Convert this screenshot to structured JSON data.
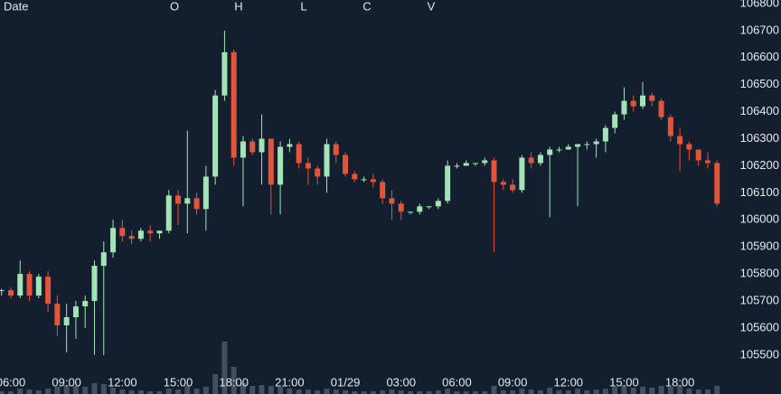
{
  "chart_data": {
    "type": "candlestick",
    "header": [
      "Date",
      "O",
      "H",
      "L",
      "C",
      "V"
    ],
    "up_color": "#a3e4b6",
    "down_color": "#e2553b",
    "volume_color": "#5a6472",
    "ylim": [
      105356,
      106813
    ],
    "yticks": [
      105500,
      105600,
      105700,
      105800,
      105900,
      106000,
      106100,
      106200,
      106300,
      106400,
      106500,
      106600,
      106700,
      106800
    ],
    "xticks": [
      {
        "value": 1,
        "label": "06:00"
      },
      {
        "value": 7,
        "label": "09:00"
      },
      {
        "value": 13,
        "label": "12:00"
      },
      {
        "value": 19,
        "label": "15:00"
      },
      {
        "value": 25,
        "label": "18:00"
      },
      {
        "value": 31,
        "label": "21:00"
      },
      {
        "value": 37,
        "label": "01/29"
      },
      {
        "value": 43,
        "label": "03:00"
      },
      {
        "value": 49,
        "label": "06:00"
      },
      {
        "value": 55,
        "label": "09:00"
      },
      {
        "value": 61,
        "label": "12:00"
      },
      {
        "value": 67,
        "label": "15:00"
      },
      {
        "value": 73,
        "label": "18:00"
      }
    ],
    "open": [
      105740,
      105740,
      105720,
      105800,
      105720,
      105790,
      105690,
      105610,
      105640,
      105680,
      105700,
      105830,
      105880,
      105970,
      105940,
      105930,
      105960,
      105950,
      105960,
      106090,
      106060,
      106080,
      106040,
      106160,
      106460,
      106620,
      106230,
      106290,
      106250,
      106300,
      106130,
      106270,
      106280,
      106210,
      106190,
      106160,
      106280,
      106240,
      106170,
      106150,
      106150,
      106140,
      106080,
      106060,
      106030,
      106030,
      106050,
      106050,
      106070,
      106200,
      106200,
      106210,
      106210,
      106220,
      106140,
      106130,
      106110,
      106230,
      106210,
      106240,
      106260,
      106260,
      106270,
      106280,
      106280,
      106290,
      106340,
      106390,
      106440,
      106420,
      106460,
      106440,
      106380,
      106310,
      106280,
      106260,
      106220,
      106210
    ],
    "high": [
      105745,
      105750,
      105850,
      105810,
      105800,
      105810,
      105720,
      105690,
      105700,
      105720,
      105850,
      105920,
      106000,
      106000,
      105960,
      105970,
      105980,
      105960,
      106110,
      106110,
      106330,
      106100,
      106200,
      106480,
      106700,
      106630,
      106310,
      106300,
      106390,
      106300,
      106290,
      106300,
      106290,
      106230,
      106200,
      106300,
      106290,
      106250,
      106180,
      106160,
      106170,
      106150,
      106110,
      106070,
      106030,
      106060,
      106050,
      106080,
      106220,
      106210,
      106220,
      106210,
      106230,
      106230,
      106150,
      106150,
      106240,
      106250,
      106250,
      106270,
      106270,
      106280,
      106280,
      106290,
      106300,
      106350,
      106400,
      106490,
      106460,
      106510,
      106470,
      106450,
      106390,
      106340,
      106290,
      106260,
      106250,
      106220
    ],
    "low": [
      105720,
      105710,
      105710,
      105700,
      105710,
      105660,
      105570,
      105510,
      105560,
      105600,
      105500,
      105500,
      105860,
      105920,
      105910,
      105920,
      105920,
      105930,
      105950,
      105980,
      105950,
      106020,
      105960,
      106130,
      106440,
      106200,
      106050,
      106240,
      106130,
      106020,
      106020,
      106250,
      106190,
      106130,
      106130,
      106100,
      106210,
      106160,
      106140,
      106140,
      106120,
      106060,
      106000,
      106000,
      106020,
      106020,
      106040,
      106040,
      106060,
      106190,
      106200,
      106200,
      106200,
      105880,
      106110,
      106100,
      106100,
      106190,
      106200,
      106010,
      106250,
      106260,
      106050,
      106260,
      106230,
      106250,
      106320,
      106370,
      106400,
      106410,
      106420,
      106370,
      106290,
      106180,
      106220,
      106200,
      106190,
      106050
    ],
    "close": [
      105740,
      105720,
      105800,
      105720,
      105790,
      105690,
      105610,
      105640,
      105680,
      105700,
      105830,
      105880,
      105970,
      105940,
      105930,
      105960,
      105950,
      105960,
      106090,
      106060,
      106080,
      106040,
      106160,
      106460,
      106620,
      106230,
      106290,
      106250,
      106300,
      106130,
      106270,
      106280,
      106210,
      106190,
      106160,
      106280,
      106240,
      106170,
      106150,
      106150,
      106140,
      106080,
      106060,
      106030,
      106030,
      106050,
      106050,
      106070,
      106200,
      106200,
      106210,
      106210,
      106220,
      106140,
      106130,
      106110,
      106230,
      106210,
      106240,
      106260,
      106260,
      106270,
      106280,
      106280,
      106290,
      106340,
      106390,
      106440,
      106420,
      106460,
      106440,
      106380,
      106310,
      106280,
      106260,
      106220,
      106210,
      106060
    ],
    "volume": [
      3,
      3,
      6,
      5,
      4,
      6,
      8,
      10,
      9,
      8,
      12,
      11,
      7,
      5,
      4,
      4,
      3,
      3,
      6,
      5,
      9,
      6,
      8,
      22,
      58,
      30,
      12,
      9,
      10,
      9,
      8,
      6,
      5,
      5,
      4,
      6,
      5,
      4,
      3,
      3,
      3,
      4,
      5,
      4,
      3,
      3,
      3,
      4,
      6,
      3,
      3,
      3,
      3,
      9,
      4,
      4,
      6,
      5,
      4,
      7,
      4,
      4,
      6,
      4,
      5,
      6,
      8,
      10,
      7,
      8,
      7,
      9,
      8,
      10,
      6,
      5,
      5,
      9
    ]
  }
}
